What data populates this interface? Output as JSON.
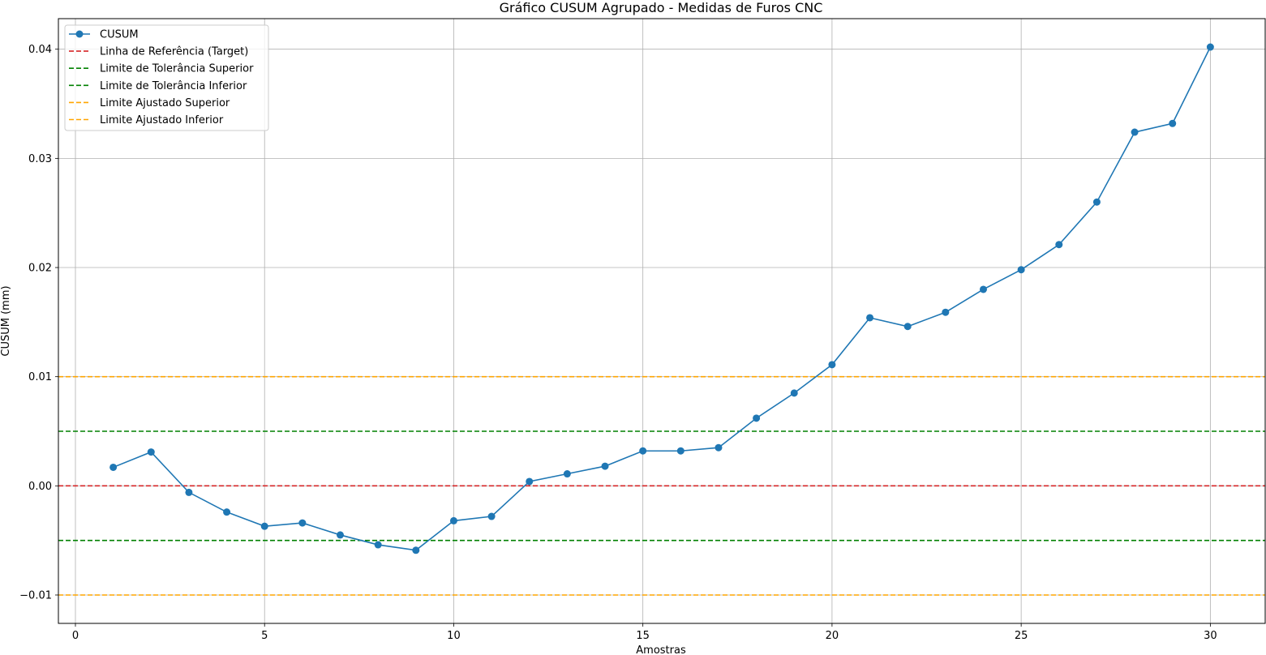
{
  "chart_data": {
    "type": "line",
    "title": "Gráfico CUSUM Agrupado - Medidas de Furos CNC",
    "xlabel": "Amostras",
    "ylabel": "CUSUM (mm)",
    "xlim": [
      -0.45,
      31.45
    ],
    "ylim": [
      -0.0126,
      0.0428
    ],
    "xticks": [
      0,
      5,
      10,
      15,
      20,
      25,
      30
    ],
    "xtick_labels": [
      "0",
      "5",
      "10",
      "15",
      "20",
      "25",
      "30"
    ],
    "yticks": [
      -0.01,
      0.0,
      0.01,
      0.02,
      0.03,
      0.04
    ],
    "ytick_labels": [
      "−0.01",
      "0.00",
      "0.01",
      "0.02",
      "0.03",
      "0.04"
    ],
    "grid": true,
    "legend_position": "upper-left",
    "series": [
      {
        "name": "CUSUM",
        "color": "#1f77b4",
        "style": "solid-with-markers",
        "x": [
          1,
          2,
          3,
          4,
          5,
          6,
          7,
          8,
          9,
          10,
          11,
          12,
          13,
          14,
          15,
          16,
          17,
          18,
          19,
          20,
          21,
          22,
          23,
          24,
          25,
          26,
          27,
          28,
          29,
          30
        ],
        "y": [
          0.0017,
          0.0031,
          -0.0006,
          -0.0024,
          -0.0037,
          -0.0034,
          -0.0045,
          -0.0054,
          -0.0059,
          -0.0032,
          -0.0028,
          0.0004,
          0.0011,
          0.0018,
          0.0032,
          0.0032,
          0.0035,
          0.0062,
          0.0085,
          0.0111,
          0.0154,
          0.0146,
          0.0159,
          0.018,
          0.0198,
          0.0221,
          0.026,
          0.0324,
          0.0332,
          0.0402
        ]
      }
    ],
    "reference_lines": [
      {
        "name": "Linha de Referência (Target)",
        "value": 0.0,
        "color": "#d62728"
      },
      {
        "name": "Limite de Tolerância Superior",
        "value": 0.005,
        "color": "#008000"
      },
      {
        "name": "Limite de Tolerância Inferior",
        "value": -0.005,
        "color": "#008000"
      },
      {
        "name": "Limite Ajustado Superior",
        "value": 0.01,
        "color": "#ffa500"
      },
      {
        "name": "Limite Ajustado Inferior",
        "value": -0.01,
        "color": "#ffa500"
      }
    ]
  }
}
